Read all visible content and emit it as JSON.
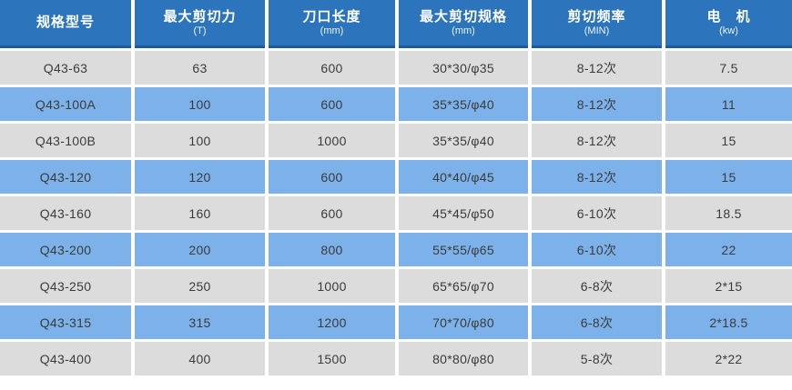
{
  "chart_data": {
    "type": "table",
    "columns": [
      {
        "label": "规格型号",
        "unit": ""
      },
      {
        "label": "最大剪切力",
        "unit": "(T)"
      },
      {
        "label": "刀口长度",
        "unit": "(mm)"
      },
      {
        "label": "最大剪切规格",
        "unit": "(mm)"
      },
      {
        "label": "剪切频率",
        "unit": "(MIN)"
      },
      {
        "label": "电　机",
        "unit": "(kw)"
      }
    ],
    "rows": [
      [
        "Q43-63",
        "63",
        "600",
        "30*30/φ35",
        "8-12次",
        "7.5"
      ],
      [
        "Q43-100A",
        "100",
        "600",
        "35*35/φ40",
        "8-12次",
        "11"
      ],
      [
        "Q43-100B",
        "100",
        "1000",
        "35*35/φ40",
        "8-12次",
        "15"
      ],
      [
        "Q43-120",
        "120",
        "600",
        "40*40/φ45",
        "8-12次",
        "15"
      ],
      [
        "Q43-160",
        "160",
        "600",
        "45*45/φ50",
        "6-10次",
        "18.5"
      ],
      [
        "Q43-200",
        "200",
        "800",
        "55*55/φ65",
        "6-10次",
        "22"
      ],
      [
        "Q43-250",
        "250",
        "1000",
        "65*65/φ70",
        "6-8次",
        "2*15"
      ],
      [
        "Q43-315",
        "315",
        "1200",
        "70*70/φ80",
        "6-8次",
        "2*18.5"
      ],
      [
        "Q43-400",
        "400",
        "1500",
        "80*80/φ80",
        "5-8次",
        "2*22"
      ]
    ]
  },
  "colors": {
    "header_bg": "#2c74bc",
    "header_border": "#1f5a9e",
    "header_text": "#ffffff",
    "row_gray": "#dcdcdc",
    "row_blue": "#7cb2e9",
    "cell_text": "#3b3b3b"
  }
}
